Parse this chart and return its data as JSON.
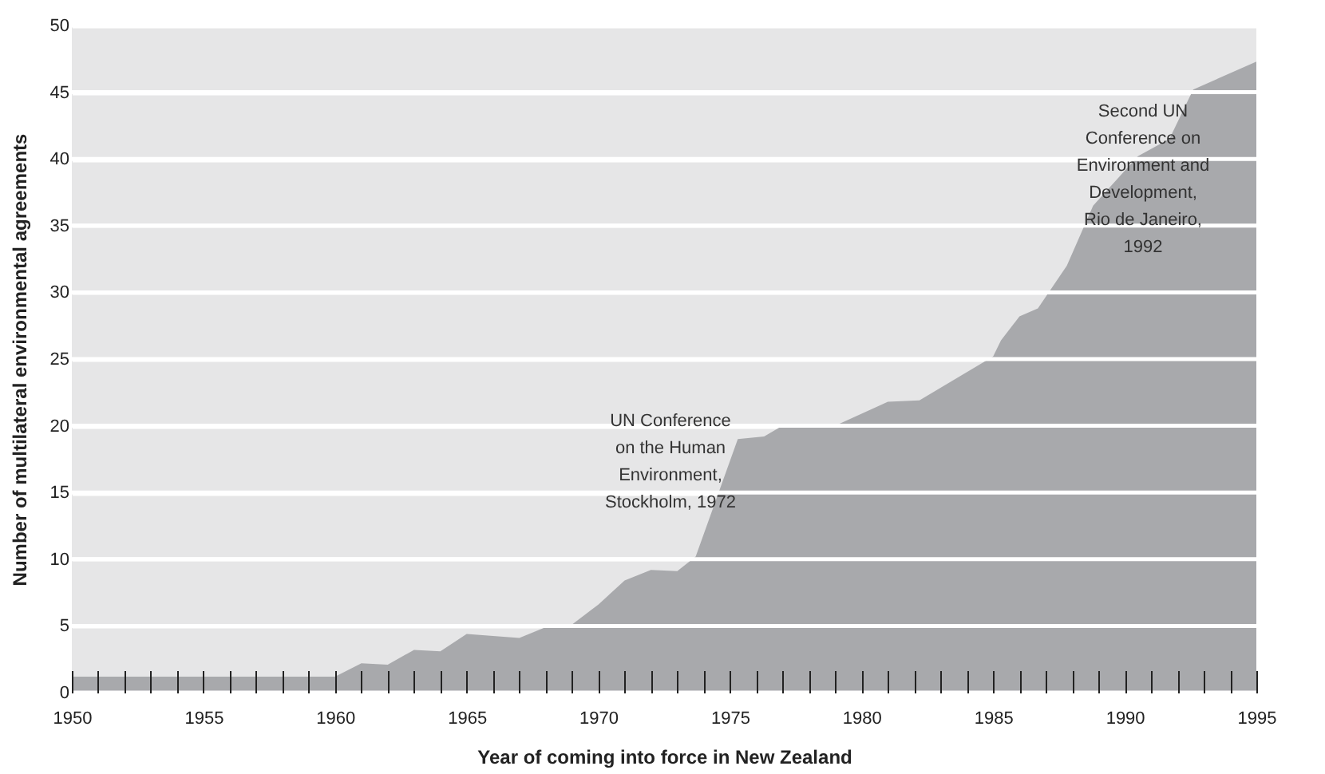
{
  "chart_data": {
    "type": "area",
    "xlabel": "Year of coming into force in New Zealand",
    "ylabel": "Number of multilateral environmental agreements",
    "x": [
      1950,
      1960,
      1961,
      1962,
      1963,
      1964,
      1965,
      1967,
      1968,
      1969,
      1970,
      1971,
      1972,
      1973,
      1973.7,
      1975.3,
      1976.3,
      1977,
      1979,
      1981,
      1982.2,
      1985,
      1985.3,
      1986,
      1986.7,
      1987.8,
      1988.8,
      1990.5,
      1991.7,
      1992.6,
      1995
    ],
    "series": [
      {
        "color": "#a8a9ac",
        "values": [
          1.2,
          1.2,
          2.2,
          2.1,
          3.2,
          3.1,
          4.4,
          4.1,
          4.9,
          5.1,
          6.6,
          8.4,
          9.2,
          9.1,
          10.2,
          19,
          19.2,
          20,
          20,
          21.8,
          21.9,
          25.2,
          26.4,
          28.2,
          28.8,
          32,
          36.5,
          40.2,
          41.5,
          45.2,
          47.3
        ]
      }
    ],
    "xlim": [
      1950,
      1995
    ],
    "xticks": [
      1950,
      {
        "value": 1951,
        "label": null
      },
      {
        "value": 1952,
        "label": null
      },
      {
        "value": 1953,
        "label": null
      },
      {
        "value": 1954,
        "label": null
      },
      1955,
      {
        "value": 1956,
        "label": null
      },
      {
        "value": 1957,
        "label": null
      },
      {
        "value": 1958,
        "label": null
      },
      {
        "value": 1959,
        "label": null
      },
      1960,
      {
        "value": 1961,
        "label": null
      },
      {
        "value": 1962,
        "label": null
      },
      {
        "value": 1963,
        "label": null
      },
      {
        "value": 1964,
        "label": null
      },
      1965,
      {
        "value": 1966,
        "label": null
      },
      {
        "value": 1967,
        "label": null
      },
      {
        "value": 1968,
        "label": null
      },
      {
        "value": 1969,
        "label": null
      },
      1970,
      {
        "value": 1971,
        "label": null
      },
      {
        "value": 1972,
        "label": null
      },
      {
        "value": 1973,
        "label": null
      },
      {
        "value": 1974,
        "label": null
      },
      1975,
      {
        "value": 1976,
        "label": null
      },
      {
        "value": 1977,
        "label": null
      },
      {
        "value": 1978,
        "label": null
      },
      {
        "value": 1979,
        "label": null
      },
      1980,
      {
        "value": 1981,
        "label": null
      },
      {
        "value": 1982,
        "label": null
      },
      {
        "value": 1983,
        "label": null
      },
      {
        "value": 1984,
        "label": null
      },
      1985,
      {
        "value": 1986,
        "label": null
      },
      {
        "value": 1987,
        "label": null
      },
      {
        "value": 1988,
        "label": null
      },
      {
        "value": 1989,
        "label": null
      },
      1990,
      {
        "value": 1991,
        "label": null
      },
      {
        "value": 1992,
        "label": null
      },
      {
        "value": 1993,
        "label": null
      },
      {
        "value": 1994,
        "label": null
      },
      1995
    ],
    "ylim": [
      0,
      50
    ],
    "yticks": [
      0,
      5,
      10,
      15,
      20,
      25,
      30,
      35,
      40,
      45,
      50
    ],
    "grid": "y",
    "annotations": [
      "UN Conference\non the Human\nEnvironment,\nStockholm, 1972",
      "Second UN\nConference on\nEnvironment and\nDevelopment,\nRio de Janeiro,\n1992"
    ]
  }
}
